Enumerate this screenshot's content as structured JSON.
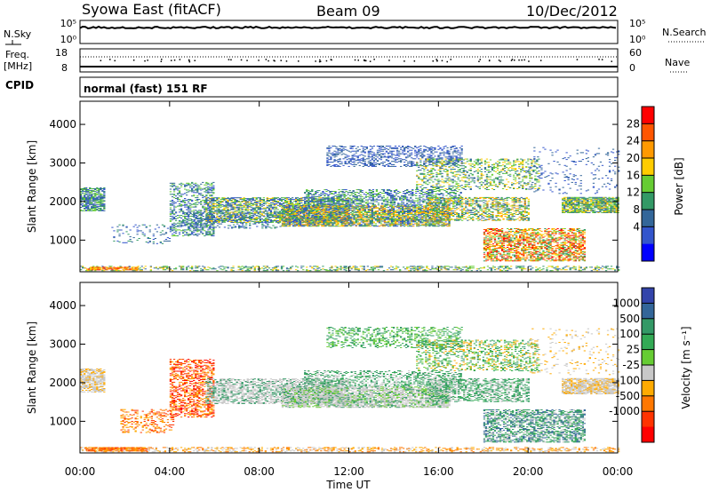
{
  "header": {
    "station": "Syowa East (fitACF)",
    "beam": "Beam 09",
    "date": "10/Dec/2012"
  },
  "panels": {
    "nsky_label": "N.Sky",
    "nsky_ticks": [
      "10^5",
      "10^0"
    ],
    "nsearch_label": "N.Search",
    "nsearch_ticks": [
      "10^5",
      "10^0"
    ],
    "freq_label_line1": "Freq.",
    "freq_label_line2": "[MHz]",
    "freq_ticks": [
      "18",
      "8"
    ],
    "nave_label": "Nave",
    "nave_ticks": [
      "60",
      "0"
    ],
    "cpid_label": "CPID",
    "cpid_text": "normal (fast) 151 RF"
  },
  "chart_data": [
    {
      "type": "heatmap",
      "name": "power-panel",
      "xlabel": "Time UT",
      "ylabel": "Slant Range [km]",
      "xlim": [
        0,
        24
      ],
      "ylim": [
        180,
        4600
      ],
      "xticks": [
        "00:00",
        "04:00",
        "08:00",
        "12:00",
        "16:00",
        "20:00",
        "00:00"
      ],
      "yticks": [
        1000,
        2000,
        3000,
        4000
      ],
      "colorbar": {
        "label": "Power [dB]",
        "ticks": [
          "28",
          "24",
          "20",
          "16",
          "12",
          "8",
          "4"
        ],
        "colors": [
          "#ff0000",
          "#ff5500",
          "#ff9900",
          "#ffcc00",
          "#66cc33",
          "#339966",
          "#336699",
          "#3355cc",
          "#0000ff"
        ]
      },
      "regions": [
        {
          "t0": 0.0,
          "t1": 24.0,
          "r0": 200,
          "r1": 320,
          "density": 0.35,
          "levels": [
            3,
            4,
            5,
            6
          ]
        },
        {
          "t0": 0.2,
          "t1": 2.6,
          "r0": 220,
          "r1": 300,
          "density": 0.8,
          "levels": [
            0,
            1,
            2,
            3
          ]
        },
        {
          "t0": 0.0,
          "t1": 1.1,
          "r0": 1750,
          "r1": 2350,
          "density": 0.7,
          "levels": [
            5,
            6,
            7,
            4
          ]
        },
        {
          "t0": 1.4,
          "t1": 4.0,
          "r0": 900,
          "r1": 1400,
          "density": 0.12,
          "levels": [
            6,
            7,
            5
          ]
        },
        {
          "t0": 4.0,
          "t1": 6.0,
          "r0": 1100,
          "r1": 2500,
          "density": 0.35,
          "levels": [
            5,
            6,
            7,
            4
          ]
        },
        {
          "t0": 4.5,
          "t1": 9.0,
          "r0": 1300,
          "r1": 1700,
          "density": 0.25,
          "levels": [
            6,
            7,
            5
          ]
        },
        {
          "t0": 5.6,
          "t1": 12.0,
          "r0": 1450,
          "r1": 2100,
          "density": 0.6,
          "levels": [
            6,
            7,
            5,
            4,
            3
          ]
        },
        {
          "t0": 9.0,
          "t1": 16.5,
          "r0": 1350,
          "r1": 1900,
          "density": 0.75,
          "levels": [
            5,
            4,
            6,
            7,
            3,
            2
          ]
        },
        {
          "t0": 10.0,
          "t1": 17.0,
          "r0": 1900,
          "r1": 2300,
          "density": 0.4,
          "levels": [
            6,
            7,
            5,
            4
          ]
        },
        {
          "t0": 11.0,
          "t1": 17.0,
          "r0": 2900,
          "r1": 3450,
          "density": 0.35,
          "levels": [
            6,
            7
          ]
        },
        {
          "t0": 15.0,
          "t1": 20.5,
          "r0": 2300,
          "r1": 3100,
          "density": 0.3,
          "levels": [
            4,
            5,
            6,
            3
          ]
        },
        {
          "t0": 15.5,
          "t1": 20.0,
          "r0": 1500,
          "r1": 2100,
          "density": 0.45,
          "levels": [
            4,
            5,
            6,
            3,
            2
          ]
        },
        {
          "t0": 18.0,
          "t1": 22.5,
          "r0": 450,
          "r1": 1300,
          "density": 0.55,
          "levels": [
            1,
            2,
            3,
            4,
            5,
            0
          ]
        },
        {
          "t0": 21.5,
          "t1": 24.0,
          "r0": 1700,
          "r1": 2100,
          "density": 0.8,
          "levels": [
            4,
            5,
            3,
            6
          ]
        },
        {
          "t0": 20.0,
          "t1": 24.0,
          "r0": 2200,
          "r1": 3400,
          "density": 0.06,
          "levels": [
            6,
            7
          ]
        }
      ]
    },
    {
      "type": "heatmap",
      "name": "velocity-panel",
      "xlabel": "Time UT",
      "ylabel": "Slant Range [km]",
      "xlim": [
        0,
        24
      ],
      "ylim": [
        180,
        4600
      ],
      "xticks": [
        "00:00",
        "04:00",
        "08:00",
        "12:00",
        "16:00",
        "20:00",
        "00:00"
      ],
      "yticks": [
        1000,
        2000,
        3000,
        4000
      ],
      "colorbar": {
        "label": "Velocity [m s⁻¹]",
        "ticks": [
          "1000",
          "500",
          "100",
          "25",
          "-25",
          "-100",
          "-500",
          "-1000"
        ],
        "colors": [
          "#3344aa",
          "#336699",
          "#339966",
          "#33aa55",
          "#66cc33",
          "#c8c8c8",
          "#ffaa00",
          "#ff7700",
          "#ff3300",
          "#ff0000"
        ]
      },
      "regions": [
        {
          "t0": 0.0,
          "t1": 24.0,
          "r0": 200,
          "r1": 320,
          "density": 0.35,
          "levels": [
            6,
            7,
            5
          ]
        },
        {
          "t0": 0.2,
          "t1": 3.0,
          "r0": 220,
          "r1": 320,
          "density": 0.8,
          "levels": [
            6,
            7,
            8
          ]
        },
        {
          "t0": 0.0,
          "t1": 1.1,
          "r0": 1750,
          "r1": 2350,
          "density": 0.7,
          "levels": [
            5,
            5,
            6
          ]
        },
        {
          "t0": 1.8,
          "t1": 4.2,
          "r0": 700,
          "r1": 1300,
          "density": 0.25,
          "levels": [
            7,
            8,
            6
          ]
        },
        {
          "t0": 4.0,
          "t1": 6.0,
          "r0": 1100,
          "r1": 2600,
          "density": 0.45,
          "levels": [
            7,
            8,
            6,
            9
          ]
        },
        {
          "t0": 5.6,
          "t1": 12.0,
          "r0": 1450,
          "r1": 2100,
          "density": 0.55,
          "levels": [
            5,
            5,
            2
          ]
        },
        {
          "t0": 9.0,
          "t1": 16.5,
          "r0": 1350,
          "r1": 1900,
          "density": 0.7,
          "levels": [
            5,
            5,
            5,
            2,
            4
          ]
        },
        {
          "t0": 10.0,
          "t1": 17.0,
          "r0": 1900,
          "r1": 2300,
          "density": 0.4,
          "levels": [
            2,
            5,
            3
          ]
        },
        {
          "t0": 11.0,
          "t1": 17.0,
          "r0": 2900,
          "r1": 3450,
          "density": 0.3,
          "levels": [
            3,
            4,
            2
          ]
        },
        {
          "t0": 15.0,
          "t1": 20.5,
          "r0": 2300,
          "r1": 3100,
          "density": 0.3,
          "levels": [
            2,
            3,
            4,
            6
          ]
        },
        {
          "t0": 15.5,
          "t1": 20.0,
          "r0": 1500,
          "r1": 2100,
          "density": 0.45,
          "levels": [
            2,
            3,
            5
          ]
        },
        {
          "t0": 18.0,
          "t1": 22.5,
          "r0": 450,
          "r1": 1300,
          "density": 0.55,
          "levels": [
            2,
            1,
            3,
            5
          ]
        },
        {
          "t0": 21.5,
          "t1": 24.0,
          "r0": 1700,
          "r1": 2100,
          "density": 0.8,
          "levels": [
            5,
            5,
            6
          ]
        },
        {
          "t0": 20.0,
          "t1": 24.0,
          "r0": 2200,
          "r1": 3400,
          "density": 0.06,
          "levels": [
            5,
            6
          ]
        }
      ]
    }
  ]
}
